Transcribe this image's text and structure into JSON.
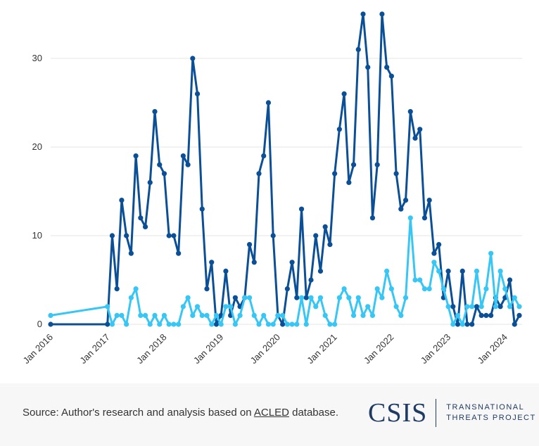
{
  "chart_data": {
    "type": "line",
    "title": "",
    "xlabel": "",
    "ylabel": "",
    "ylim": [
      0,
      35
    ],
    "y_ticks": [
      0,
      10,
      20,
      30
    ],
    "grid": "horizontal",
    "x_tick_labels": [
      "Jan 2016",
      "Jan 2017",
      "Jan 2018",
      "Jan 2019",
      "Jan 2020",
      "Jan 2021",
      "Jan 2022",
      "Jan 2023",
      "Jan 2024"
    ],
    "series": [
      {
        "color": "#0b4f96",
        "points": [
          [
            "2016-01",
            0
          ],
          [
            "2017-01",
            0
          ],
          [
            "2017-02",
            10
          ],
          [
            "2017-03",
            4
          ],
          [
            "2017-04",
            14
          ],
          [
            "2017-05",
            10
          ],
          [
            "2017-06",
            8
          ],
          [
            "2017-07",
            19
          ],
          [
            "2017-08",
            12
          ],
          [
            "2017-09",
            11
          ],
          [
            "2017-10",
            16
          ],
          [
            "2017-11",
            24
          ],
          [
            "2017-12",
            18
          ],
          [
            "2018-01",
            17
          ],
          [
            "2018-02",
            10
          ],
          [
            "2018-03",
            10
          ],
          [
            "2018-04",
            8
          ],
          [
            "2018-05",
            19
          ],
          [
            "2018-06",
            18
          ],
          [
            "2018-07",
            30
          ],
          [
            "2018-08",
            26
          ],
          [
            "2018-09",
            13
          ],
          [
            "2018-10",
            4
          ],
          [
            "2018-11",
            7
          ],
          [
            "2018-12",
            0
          ],
          [
            "2019-01",
            1
          ],
          [
            "2019-02",
            6
          ],
          [
            "2019-03",
            1
          ],
          [
            "2019-04",
            3
          ],
          [
            "2019-05",
            2
          ],
          [
            "2019-06",
            3
          ],
          [
            "2019-07",
            9
          ],
          [
            "2019-08",
            7
          ],
          [
            "2019-09",
            17
          ],
          [
            "2019-10",
            19
          ],
          [
            "2019-11",
            25
          ],
          [
            "2019-12",
            10
          ],
          [
            "2020-01",
            1
          ],
          [
            "2020-02",
            0
          ],
          [
            "2020-03",
            4
          ],
          [
            "2020-04",
            7
          ],
          [
            "2020-05",
            3
          ],
          [
            "2020-06",
            13
          ],
          [
            "2020-07",
            3
          ],
          [
            "2020-08",
            5
          ],
          [
            "2020-09",
            10
          ],
          [
            "2020-10",
            6
          ],
          [
            "2020-11",
            11
          ],
          [
            "2020-12",
            9
          ],
          [
            "2021-01",
            17
          ],
          [
            "2021-02",
            22
          ],
          [
            "2021-03",
            26
          ],
          [
            "2021-04",
            16
          ],
          [
            "2021-05",
            18
          ],
          [
            "2021-06",
            31
          ],
          [
            "2021-07",
            35
          ],
          [
            "2021-08",
            29
          ],
          [
            "2021-09",
            12
          ],
          [
            "2021-10",
            18
          ],
          [
            "2021-11",
            35
          ],
          [
            "2021-12",
            29
          ],
          [
            "2022-01",
            28
          ],
          [
            "2022-02",
            17
          ],
          [
            "2022-03",
            13
          ],
          [
            "2022-04",
            14
          ],
          [
            "2022-05",
            24
          ],
          [
            "2022-06",
            21
          ],
          [
            "2022-07",
            22
          ],
          [
            "2022-08",
            12
          ],
          [
            "2022-09",
            14
          ],
          [
            "2022-10",
            8
          ],
          [
            "2022-11",
            9
          ],
          [
            "2022-12",
            3
          ],
          [
            "2023-01",
            6
          ],
          [
            "2023-02",
            2
          ],
          [
            "2023-03",
            0
          ],
          [
            "2023-04",
            6
          ],
          [
            "2023-05",
            0
          ],
          [
            "2023-06",
            0
          ],
          [
            "2023-07",
            2
          ],
          [
            "2023-08",
            1
          ],
          [
            "2023-09",
            1
          ],
          [
            "2023-10",
            1
          ],
          [
            "2023-11",
            3
          ],
          [
            "2023-12",
            2
          ],
          [
            "2024-01",
            3
          ],
          [
            "2024-02",
            5
          ],
          [
            "2024-03",
            0
          ],
          [
            "2024-04",
            1
          ]
        ]
      },
      {
        "color": "#38c6f4",
        "points": [
          [
            "2016-01",
            1
          ],
          [
            "2017-01",
            2
          ],
          [
            "2017-02",
            0
          ],
          [
            "2017-03",
            1
          ],
          [
            "2017-04",
            1
          ],
          [
            "2017-05",
            0
          ],
          [
            "2017-06",
            3
          ],
          [
            "2017-07",
            4
          ],
          [
            "2017-08",
            1
          ],
          [
            "2017-09",
            1
          ],
          [
            "2017-10",
            0
          ],
          [
            "2017-11",
            1
          ],
          [
            "2017-12",
            0
          ],
          [
            "2018-01",
            1
          ],
          [
            "2018-02",
            0
          ],
          [
            "2018-03",
            0
          ],
          [
            "2018-04",
            0
          ],
          [
            "2018-05",
            2
          ],
          [
            "2018-06",
            3
          ],
          [
            "2018-07",
            1
          ],
          [
            "2018-08",
            2
          ],
          [
            "2018-09",
            1
          ],
          [
            "2018-10",
            1
          ],
          [
            "2018-11",
            0
          ],
          [
            "2018-12",
            1
          ],
          [
            "2019-01",
            0
          ],
          [
            "2019-02",
            2
          ],
          [
            "2019-03",
            2
          ],
          [
            "2019-04",
            0
          ],
          [
            "2019-05",
            1
          ],
          [
            "2019-06",
            3
          ],
          [
            "2019-07",
            3
          ],
          [
            "2019-08",
            1
          ],
          [
            "2019-09",
            0
          ],
          [
            "2019-10",
            1
          ],
          [
            "2019-11",
            0
          ],
          [
            "2019-12",
            0
          ],
          [
            "2020-01",
            1
          ],
          [
            "2020-02",
            1
          ],
          [
            "2020-03",
            0
          ],
          [
            "2020-04",
            0
          ],
          [
            "2020-05",
            0
          ],
          [
            "2020-06",
            3
          ],
          [
            "2020-07",
            0
          ],
          [
            "2020-08",
            3
          ],
          [
            "2020-09",
            2
          ],
          [
            "2020-10",
            3
          ],
          [
            "2020-11",
            1
          ],
          [
            "2020-12",
            0
          ],
          [
            "2021-01",
            0
          ],
          [
            "2021-02",
            3
          ],
          [
            "2021-03",
            4
          ],
          [
            "2021-04",
            3
          ],
          [
            "2021-05",
            1
          ],
          [
            "2021-06",
            3
          ],
          [
            "2021-07",
            1
          ],
          [
            "2021-08",
            2
          ],
          [
            "2021-09",
            1
          ],
          [
            "2021-10",
            4
          ],
          [
            "2021-11",
            3
          ],
          [
            "2021-12",
            6
          ],
          [
            "2022-01",
            4
          ],
          [
            "2022-02",
            2
          ],
          [
            "2022-03",
            1
          ],
          [
            "2022-04",
            3
          ],
          [
            "2022-05",
            12
          ],
          [
            "2022-06",
            5
          ],
          [
            "2022-07",
            5
          ],
          [
            "2022-08",
            4
          ],
          [
            "2022-09",
            4
          ],
          [
            "2022-10",
            7
          ],
          [
            "2022-11",
            6
          ],
          [
            "2022-12",
            4
          ],
          [
            "2023-01",
            2
          ],
          [
            "2023-02",
            0
          ],
          [
            "2023-03",
            1
          ],
          [
            "2023-04",
            0
          ],
          [
            "2023-05",
            2
          ],
          [
            "2023-06",
            2
          ],
          [
            "2023-07",
            6
          ],
          [
            "2023-08",
            2
          ],
          [
            "2023-09",
            4
          ],
          [
            "2023-10",
            8
          ],
          [
            "2023-11",
            2
          ],
          [
            "2023-12",
            6
          ],
          [
            "2024-01",
            4
          ],
          [
            "2024-02",
            2
          ],
          [
            "2024-03",
            3
          ],
          [
            "2024-04",
            2
          ]
        ]
      }
    ]
  },
  "footer": {
    "source_prefix": "Source: Author's research and analysis based on ",
    "source_link": "ACLED",
    "source_suffix": " database.",
    "logo_mark": "CSIS",
    "logo_line1": "TRANSNATIONAL",
    "logo_line2": "THREATS PROJECT"
  }
}
